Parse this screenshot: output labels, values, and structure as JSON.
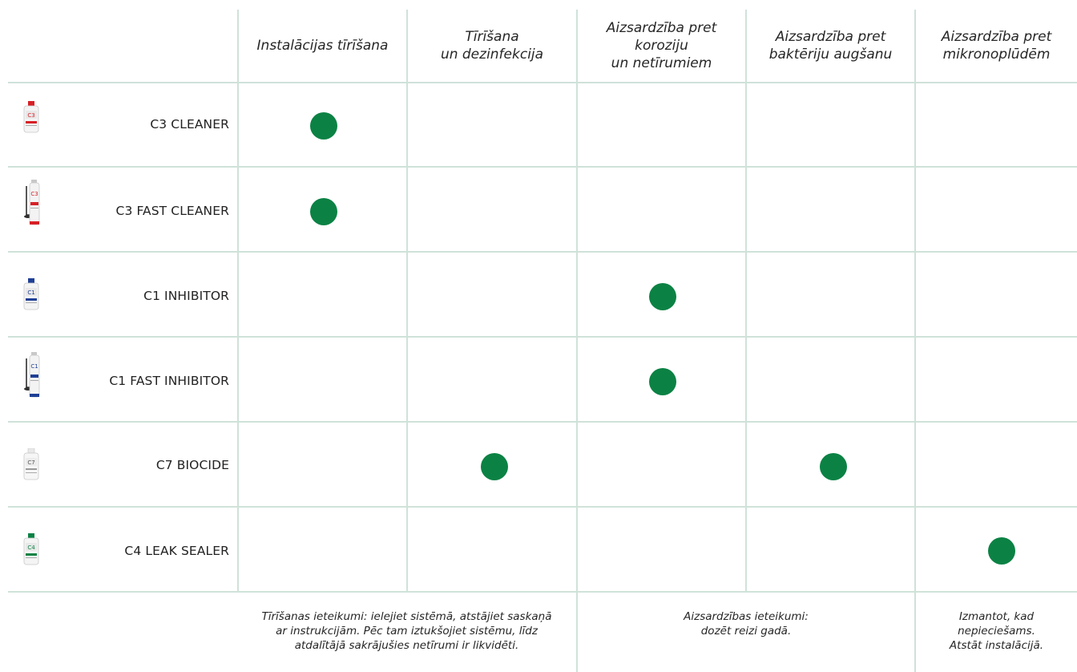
{
  "colors": {
    "grid_line": "#cfe2d9",
    "dot": "#0b8244"
  },
  "columns": [
    "Instalācijas tīrīšana",
    "Tīrīšana\nun dezinfekcija",
    "Aizsardzība pret\nkoroziju\nun netīrumiem",
    "Aizsardzība pret\nbaktēriju augšanu",
    "Aizsardzība pret\nmikronoplūdēm"
  ],
  "products": [
    {
      "name": "C3 CLEANER",
      "icon": "red-bottle-icon",
      "marks": [
        true,
        false,
        false,
        false,
        false
      ]
    },
    {
      "name": "C3 FAST CLEANER",
      "icon": "red-spray-can-icon",
      "marks": [
        true,
        false,
        false,
        false,
        false
      ]
    },
    {
      "name": "C1 INHIBITOR",
      "icon": "blue-bottle-icon",
      "marks": [
        false,
        false,
        true,
        false,
        false
      ]
    },
    {
      "name": "C1 FAST INHIBITOR",
      "icon": "blue-spray-can-icon",
      "marks": [
        false,
        false,
        true,
        false,
        false
      ]
    },
    {
      "name": "C7 BIOCIDE",
      "icon": "white-bottle-icon",
      "marks": [
        false,
        true,
        false,
        true,
        false
      ]
    },
    {
      "name": "C4 LEAK SEALER",
      "icon": "green-bottle-icon",
      "marks": [
        false,
        false,
        false,
        false,
        true
      ]
    }
  ],
  "notes": {
    "cleaning": "Tīrīšanas ieteikumi: ielejiet sistēmā, atstājiet saskaņā\nar instrukcijām. Pēc tam iztukšojiet sistēmu, līdz\natdalītājā sakrājušies netīrumi ir likvidēti.",
    "protection": "Aizsardzības ieteikumi:\ndozēt reizi gadā.",
    "sealing": "Izmantot, kad\nnepieciešams.\nAtstāt instalācijā."
  }
}
